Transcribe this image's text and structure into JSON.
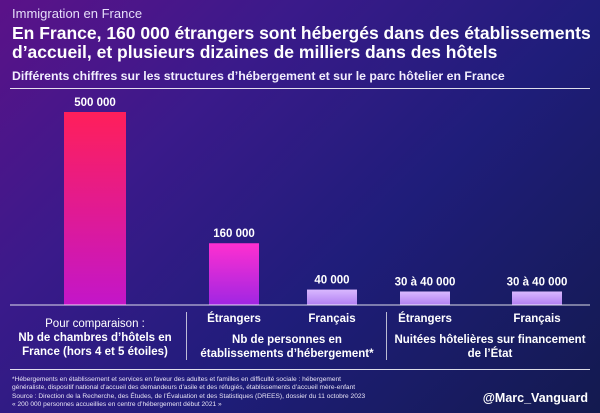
{
  "header": {
    "kicker": "Immigration en France",
    "title": "En France, 160 000 étrangers sont hébergés dans des établissements d’accueil, et plusieurs dizaines de milliers dans des hôtels",
    "subtitle": "Différents chiffres sur les structures d’hébergement et sur le parc hôtelier en France"
  },
  "chart_data": {
    "type": "bar",
    "title": "Différents chiffres sur les structures d’hébergement et sur le parc hôtelier en France",
    "categories": [
      "Nb de chambres d’hôtels en France (hors 4 et 5 étoiles)",
      "Étrangers",
      "Français",
      "Étrangers",
      "Français"
    ],
    "values": [
      500000,
      160000,
      40000,
      35000,
      35000
    ],
    "value_labels": [
      "500 000",
      "160 000",
      "40 000",
      "30 à 40 000",
      "30 à 40 000"
    ],
    "x_labels": [
      "",
      "Étrangers",
      "Français",
      "Étrangers",
      "Français"
    ],
    "groups": [
      {
        "label_lines": [
          "Nb de personnes en",
          "établissements d’hébergement*"
        ],
        "categories": [
          1,
          2
        ]
      },
      {
        "label_lines": [
          "Nuitées hôtelières sur financement",
          "de l’État"
        ],
        "categories": [
          3,
          4
        ]
      }
    ],
    "comparison_label": {
      "line1": "Pour comparaison :",
      "line2": "Nb de chambres d’hôtels en",
      "line3": "France (hors 4 et 5 étoiles)"
    },
    "ylim": [
      0,
      500000
    ],
    "xlabel": "",
    "ylabel": "",
    "grid": false,
    "legend": "none",
    "colors": {
      "comparison_bar_top": "#ff1f5a",
      "comparison_bar_bottom": "#c316c9",
      "main_bar_top": "#ff2fd0",
      "main_bar_bottom": "#a026e3",
      "small_bar_top": "#d9b8ff",
      "small_bar_bottom": "#b07ff2"
    }
  },
  "notes": {
    "line1": "*Hébergements en établissement et services en faveur des adultes et familles en difficulté sociale : hébergement",
    "line2": "généraliste, dispositif national d’accueil des demandeurs d’asile et des réfugiés, établissements d’accueil mère-enfant",
    "line3": "Source : Direction de la Recherche, des Études, de l’Évaluation et des Statistiques (DREES), dossier du 11 octobre 2023",
    "line4": "« 200 000 personnes accueillies en centre d’hébergement début 2021 »"
  },
  "watermark": "@Marc_Vanguard"
}
